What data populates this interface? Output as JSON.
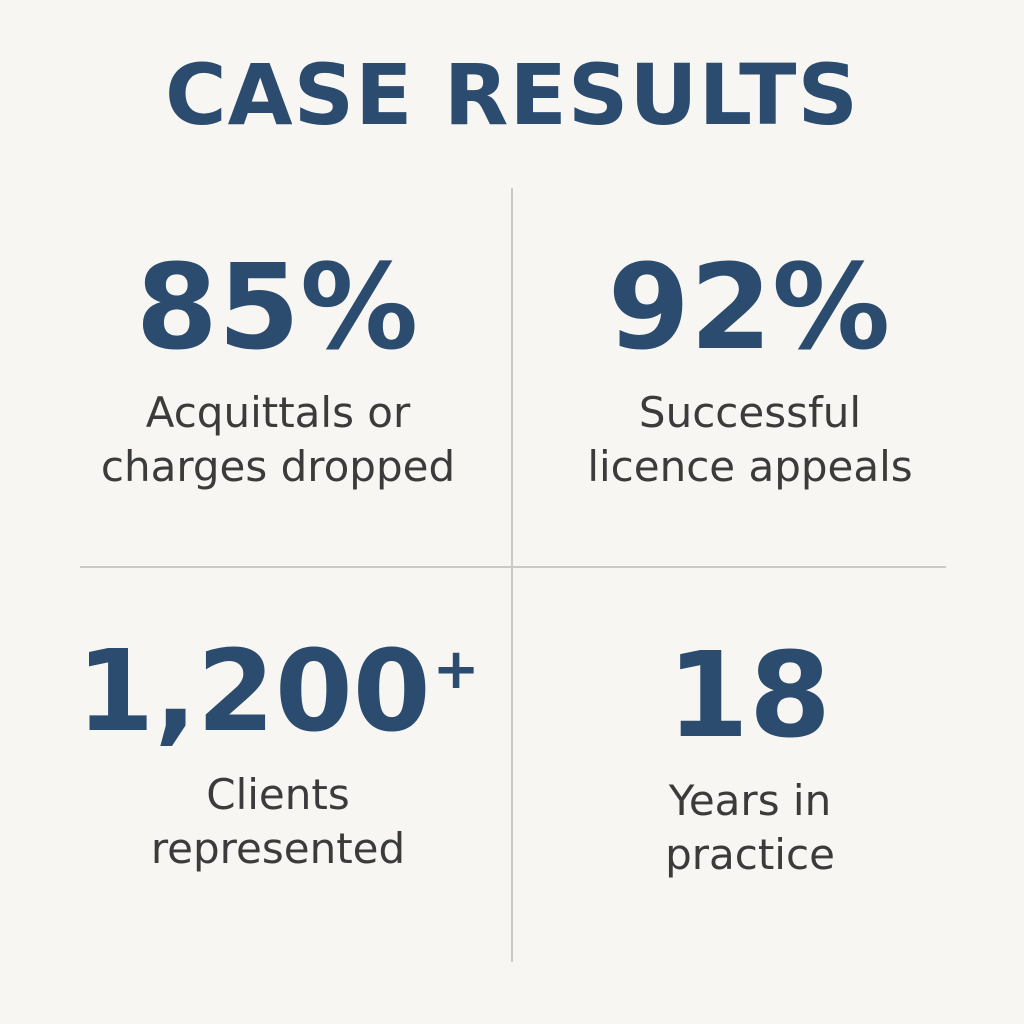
{
  "title": "CASE RESULTS",
  "colors": {
    "background": "#f8f6f2",
    "accent": "#2b4b6f",
    "label": "#3b3b3b",
    "divider": "#c9c9c9"
  },
  "stats": [
    {
      "value": "85%",
      "suffix": "",
      "label_line1": "Acquittals or",
      "label_line2": "charges dropped"
    },
    {
      "value": "92%",
      "suffix": "",
      "label_line1": "Successful",
      "label_line2": "licence appeals"
    },
    {
      "value": "1,200",
      "suffix": "+",
      "label_line1": "Clients",
      "label_line2": "represented"
    },
    {
      "value": "18",
      "suffix": "",
      "label_line1": "Years in",
      "label_line2": "practice"
    }
  ]
}
